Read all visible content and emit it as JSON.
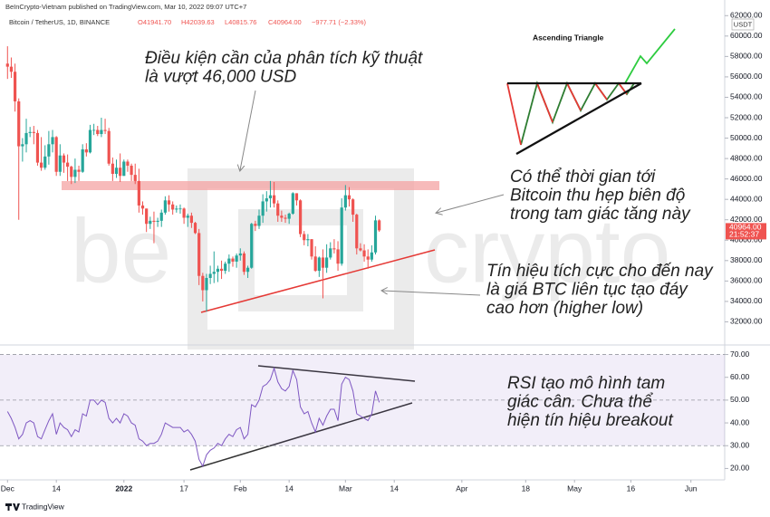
{
  "header": {
    "published": "BeInCrypto-Vietnam published on TradingView.com, Mar 10, 2022 09:07 UTC+7",
    "symbol": "Bitcoin / TetherUS, 1D, BINANCE",
    "ohlc": [
      "O41941.70",
      "H42039.63",
      "L40815.76",
      "C40964.00"
    ],
    "change": "−977.71 (−2.33%)"
  },
  "footer": "TradingView",
  "chart_data": [
    {
      "type": "candlestick",
      "up_color": "#26a69a",
      "down_color": "#ef5350",
      "x": [
        -31,
        -30,
        -29,
        -28,
        -27,
        -26,
        -25,
        -24,
        -23,
        -22,
        -21,
        -20,
        -19,
        -18,
        -17,
        -16,
        -15,
        -14,
        -13,
        -12,
        -11,
        -10,
        -9,
        -8,
        -7,
        -6,
        -5,
        -4,
        -3,
        -2,
        -1,
        0,
        1,
        2,
        3,
        4,
        5,
        6,
        7,
        8,
        9,
        10,
        11,
        12,
        13,
        14,
        15,
        16,
        17,
        18,
        19,
        20,
        21,
        22,
        23,
        24,
        25,
        26,
        27,
        28,
        29,
        30,
        31,
        32,
        33,
        34,
        35,
        36,
        37,
        38,
        39,
        40,
        41,
        42,
        43,
        44,
        45,
        46,
        47,
        48,
        49,
        50,
        51,
        52,
        53,
        54,
        55,
        56,
        57,
        58,
        59,
        60,
        61,
        62,
        63,
        64,
        65,
        66,
        67,
        68
      ],
      "open": [
        57300,
        57000,
        56500,
        53600,
        49200,
        49400,
        50500,
        50600,
        50500,
        47600,
        47100,
        48200,
        49400,
        50100,
        46700,
        48300,
        47600,
        47200,
        46200,
        46900,
        46700,
        48900,
        48600,
        50800,
        50800,
        50400,
        50800,
        50700,
        47500,
        46500,
        47100,
        46300,
        47700,
        47300,
        46400,
        45800,
        43400,
        43100,
        41600,
        41900,
        41800,
        41900,
        42700,
        43900,
        43500,
        43000,
        43100,
        43100,
        42200,
        42400,
        41700,
        40700,
        36500,
        35100,
        36300,
        36700,
        36900,
        37200,
        37000,
        37700,
        38200,
        37900,
        38500,
        38700,
        36900,
        37300,
        41600,
        41400,
        42400,
        43800,
        44100,
        44400,
        43600,
        42400,
        42200,
        42100,
        42600,
        44600,
        43900,
        40600,
        40000,
        40100,
        38400,
        37000,
        38300,
        37300,
        38300,
        39200,
        39100,
        37700,
        43200,
        44400,
        44000,
        42500,
        39200,
        39000,
        38400,
        38100,
        38800,
        41941.7
      ],
      "high": [
        59000,
        57900,
        57300,
        53900,
        50000,
        51900,
        51100,
        51200,
        50800,
        50100,
        49300,
        50700,
        50800,
        50200,
        49400,
        48500,
        48400,
        47300,
        48000,
        47300,
        49400,
        49500,
        51300,
        51400,
        51200,
        52000,
        51900,
        51000,
        48100,
        47900,
        48500,
        47900,
        47900,
        47500,
        47500,
        47000,
        43800,
        43100,
        42300,
        42800,
        42200,
        43000,
        44300,
        44400,
        43800,
        43400,
        43500,
        43200,
        42600,
        42700,
        41800,
        41100,
        36800,
        36700,
        37500,
        38900,
        37500,
        38000,
        37900,
        38600,
        38400,
        38700,
        39200,
        38900,
        37500,
        41700,
        41900,
        43000,
        44500,
        44800,
        45800,
        45700,
        43900,
        42900,
        42500,
        42700,
        44700,
        44600,
        44000,
        40900,
        40600,
        40100,
        39400,
        38400,
        39100,
        39600,
        39800,
        40100,
        39900,
        44100,
        45400,
        45200,
        44100,
        42600,
        39700,
        39600,
        39100,
        39500,
        42400,
        42039.63
      ],
      "low": [
        55800,
        55900,
        52600,
        42000,
        47700,
        48600,
        50100,
        49400,
        47300,
        46800,
        46900,
        47400,
        48600,
        46300,
        46300,
        46600,
        45800,
        45500,
        45600,
        45800,
        46600,
        48200,
        48500,
        50300,
        50200,
        50100,
        50400,
        47300,
        45800,
        46100,
        45700,
        46300,
        46700,
        45800,
        45500,
        42700,
        42500,
        40800,
        41100,
        39700,
        41300,
        41300,
        42500,
        42800,
        42500,
        42700,
        42600,
        41600,
        41300,
        41200,
        40600,
        35600,
        34000,
        33000,
        35700,
        35800,
        35900,
        36200,
        36700,
        36900,
        37400,
        37300,
        38000,
        36600,
        36300,
        37200,
        40900,
        41100,
        41700,
        42800,
        43200,
        43200,
        41800,
        41800,
        41700,
        41600,
        42500,
        43400,
        40300,
        39500,
        39400,
        38100,
        36900,
        36400,
        34300,
        36800,
        38100,
        38700,
        37000,
        37500,
        42900,
        43300,
        41800,
        38600,
        38900,
        37900,
        37200,
        37900,
        38600,
        40815.76
      ],
      "close": [
        57000,
        56500,
        53600,
        49200,
        49400,
        50500,
        50600,
        50500,
        47600,
        47100,
        48200,
        49400,
        50100,
        46700,
        48300,
        47600,
        47200,
        46200,
        46900,
        46700,
        48900,
        48600,
        50800,
        50800,
        50400,
        50800,
        50700,
        47500,
        46500,
        47100,
        46300,
        47700,
        47300,
        46400,
        45800,
        43400,
        43100,
        41600,
        41900,
        41800,
        41900,
        42700,
        43900,
        43500,
        43000,
        43100,
        43100,
        42200,
        42400,
        41700,
        40700,
        36500,
        35100,
        36300,
        36700,
        36900,
        37200,
        37000,
        37700,
        38200,
        37900,
        38500,
        38700,
        36900,
        37300,
        41600,
        41400,
        42400,
        43800,
        44100,
        44400,
        43600,
        42400,
        42200,
        42100,
        42600,
        44600,
        43900,
        40600,
        40000,
        40100,
        38400,
        37000,
        38300,
        37300,
        38300,
        39200,
        39100,
        37700,
        43200,
        44400,
        44000,
        42500,
        39200,
        39000,
        38400,
        38100,
        38800,
        41941.7,
        40964
      ],
      "xlim": [
        -33,
        160
      ],
      "ylim": [
        30000,
        63000
      ],
      "yticks": [
        {
          "value": 32000,
          "label": "32000.00"
        },
        {
          "value": 34000,
          "label": "34000.00"
        },
        {
          "value": 36000,
          "label": "36000.00"
        },
        {
          "value": 38000,
          "label": "38000.00"
        },
        {
          "value": 40000,
          "label": "40000.00"
        },
        {
          "value": 42000,
          "label": "42000.00"
        },
        {
          "value": 44000,
          "label": "44000.00"
        },
        {
          "value": 46000,
          "label": "46000.00"
        },
        {
          "value": 48000,
          "label": "48000.00"
        },
        {
          "value": 50000,
          "label": "50000.00"
        },
        {
          "value": 52000,
          "label": "52000.00"
        },
        {
          "value": 54000,
          "label": "54000.00"
        },
        {
          "value": 56000,
          "label": "56000.00"
        },
        {
          "value": 58000,
          "label": "58000.00"
        },
        {
          "value": 60000,
          "label": "60000.00"
        },
        {
          "value": 62000,
          "label": "62000.00"
        }
      ],
      "currency": "USDT",
      "last_price_label": "40964.00",
      "countdown": "21:52:37",
      "watermark": [
        "be",
        "crypto"
      ],
      "diagram_title": "Ascending Triangle",
      "annotations": [
        {
          "lines": [
            "Điều kiện cần của phân tích kỹ thuật",
            "là vượt 46,000 USD"
          ]
        },
        {
          "lines": [
            "Có thể thời gian tới",
            "Bitcoin thu hẹp biên độ",
            "trong tam giác tăng này"
          ]
        },
        {
          "lines": [
            "Tín hiệu tích cực cho đến nay",
            "là giá BTC liên tục tạo đáy",
            "cao hơn (higher low)"
          ]
        }
      ]
    },
    {
      "type": "line",
      "color": "#7e57c2",
      "x": [
        -31,
        -30,
        -29,
        -28,
        -27,
        -26,
        -25,
        -24,
        -23,
        -22,
        -21,
        -20,
        -19,
        -18,
        -17,
        -16,
        -15,
        -14,
        -13,
        -12,
        -11,
        -10,
        -9,
        -8,
        -7,
        -6,
        -5,
        -4,
        -3,
        -2,
        -1,
        0,
        1,
        2,
        3,
        4,
        5,
        6,
        7,
        8,
        9,
        10,
        11,
        12,
        13,
        14,
        15,
        16,
        17,
        18,
        19,
        20,
        21,
        22,
        23,
        24,
        25,
        26,
        27,
        28,
        29,
        30,
        31,
        32,
        33,
        34,
        35,
        36,
        37,
        38,
        39,
        40,
        41,
        42,
        43,
        44,
        45,
        46,
        47,
        48,
        49,
        50,
        51,
        52,
        53,
        54,
        55,
        56,
        57,
        58,
        59,
        60,
        61,
        62,
        63,
        64,
        65,
        66,
        67,
        68
      ],
      "values": [
        45,
        42,
        38,
        33,
        35,
        40,
        41,
        40,
        34,
        33,
        37,
        41,
        44,
        35,
        40,
        38,
        37,
        34,
        37,
        36,
        44,
        43,
        50,
        50,
        48,
        50,
        49,
        42,
        40,
        42,
        40,
        44,
        43,
        40,
        39,
        33,
        32,
        30,
        31,
        31,
        32,
        35,
        40,
        39,
        38,
        38,
        38,
        36,
        37,
        35,
        32,
        24,
        21,
        26,
        28,
        29,
        31,
        30,
        33,
        35,
        34,
        37,
        38,
        33,
        35,
        48,
        47,
        50,
        56,
        57,
        59,
        64,
        58,
        55,
        54,
        56,
        63,
        59,
        47,
        44,
        45,
        40,
        36,
        42,
        39,
        43,
        46,
        46,
        41,
        57,
        60,
        59,
        54,
        44,
        43,
        42,
        41,
        44,
        54,
        49
      ],
      "xlim": [
        -33,
        160
      ],
      "ylim": [
        15,
        73
      ],
      "band": [
        30,
        70
      ],
      "yticks": [
        {
          "value": 20,
          "label": "20.00"
        },
        {
          "value": 30,
          "label": "30.00"
        },
        {
          "value": 40,
          "label": "40.00"
        },
        {
          "value": 50,
          "label": "50.00"
        },
        {
          "value": 60,
          "label": "60.00"
        },
        {
          "value": 70,
          "label": "70.00"
        }
      ],
      "xticks": [
        {
          "value": -31,
          "label": "Dec"
        },
        {
          "value": -18,
          "label": "14"
        },
        {
          "value": 0,
          "label": "2022"
        },
        {
          "value": 16,
          "label": "17"
        },
        {
          "value": 31,
          "label": "Feb"
        },
        {
          "value": 44,
          "label": "14"
        },
        {
          "value": 59,
          "label": "Mar"
        },
        {
          "value": 72,
          "label": "14"
        },
        {
          "value": 90,
          "label": "Apr"
        },
        {
          "value": 107,
          "label": "18"
        },
        {
          "value": 120,
          "label": "May"
        },
        {
          "value": 135,
          "label": "16"
        },
        {
          "value": 151,
          "label": "Jun"
        }
      ],
      "annotations": [
        {
          "lines": [
            "RSI tạo mô hình tam",
            "giác cân. Chưa thể",
            "hiện tín hiệu breakout"
          ]
        }
      ]
    }
  ]
}
